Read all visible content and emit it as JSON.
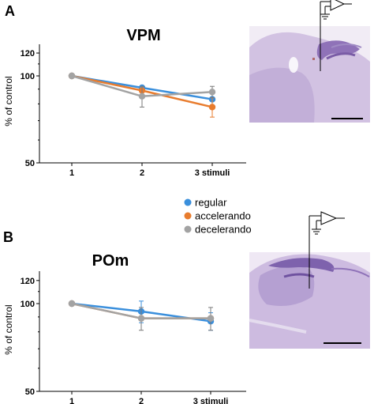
{
  "panels": [
    {
      "letter": "A"
    },
    {
      "letter": "B"
    }
  ],
  "legend": [
    {
      "label": "regular",
      "color": "#3a8fdc"
    },
    {
      "label": "accelerando",
      "color": "#e87c2e"
    },
    {
      "label": "decelerando",
      "color": "#a3a3a3"
    }
  ],
  "chart_data": [
    {
      "type": "line",
      "title": "VPM",
      "xlabel": "",
      "ylabel": "% of control",
      "categories": [
        "1",
        "2",
        "3 stimuli"
      ],
      "yticks": [
        "50",
        "100",
        "120"
      ],
      "ylim": [
        50,
        120
      ],
      "yscale": "log",
      "grid": false,
      "series": [
        {
          "name": "regular",
          "color": "#3a8fdc",
          "values": [
            100,
            91,
            83
          ],
          "errors": [
            0,
            0,
            0
          ]
        },
        {
          "name": "accelerando",
          "color": "#e87c2e",
          "values": [
            100,
            89,
            78
          ],
          "errors": [
            0,
            0,
            6
          ]
        },
        {
          "name": "decelerando",
          "color": "#a3a3a3",
          "values": [
            100,
            85,
            88
          ],
          "errors": [
            0,
            7,
            4
          ]
        }
      ]
    },
    {
      "type": "line",
      "title": "POm",
      "xlabel": "",
      "ylabel": "% of control",
      "categories": [
        "1",
        "2",
        "3 stimuli"
      ],
      "yticks": [
        "50",
        "100",
        "120"
      ],
      "ylim": [
        50,
        120
      ],
      "yscale": "log",
      "grid": false,
      "series": [
        {
          "name": "regular",
          "color": "#3a8fdc",
          "values": [
            100,
            94,
            87
          ],
          "errors": [
            0,
            8,
            6
          ]
        },
        {
          "name": "accelerando",
          "color": "#e87c2e",
          "values": [
            100,
            89,
            89
          ],
          "errors": [
            0,
            0,
            0
          ]
        },
        {
          "name": "decelerando",
          "color": "#a3a3a3",
          "values": [
            100,
            89,
            89
          ],
          "errors": [
            0,
            8,
            8
          ]
        }
      ]
    }
  ]
}
